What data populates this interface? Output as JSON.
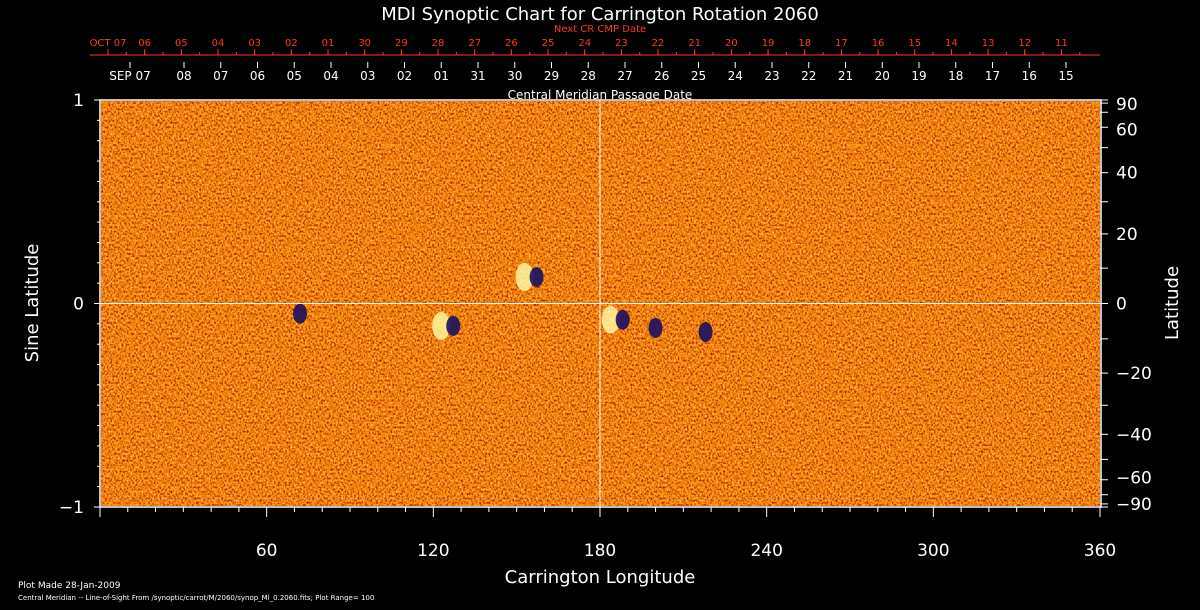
{
  "colors": {
    "background": "#000000",
    "text": "#ffffff",
    "next_cr_axis": "#ff3a1f",
    "map_base": "#ff5a10",
    "positive_flux": "#fff6a0",
    "negative_flux": "#1a1060"
  },
  "chart_data": {
    "type": "heatmap",
    "title": "MDI Synoptic Chart for Carrington Rotation 2060",
    "xlabel": "Carrington Longitude",
    "ylabel_left": "Sine Latitude",
    "ylabel_right": "Latitude",
    "xlim": [
      0,
      360
    ],
    "ylim": [
      -1,
      1
    ],
    "x_ticks": [
      60,
      120,
      180,
      240,
      300,
      360
    ],
    "y_ticks_left": [
      -1,
      0,
      1
    ],
    "y_ticks_right": [
      90,
      60,
      40,
      20,
      0,
      -20,
      -40,
      -60,
      -90
    ],
    "top_axis_label": "Central Meridian Passage Date",
    "top_axis_dates": [
      "SEP 07",
      "08",
      "07",
      "06",
      "05",
      "04",
      "03",
      "02",
      "01",
      "31",
      "30",
      "29",
      "28",
      "27",
      "26",
      "25",
      "24",
      "23",
      "22",
      "21",
      "20",
      "19",
      "18",
      "17",
      "16",
      "15"
    ],
    "next_cr_label": "Next CR CMP Date",
    "next_cr_dates": [
      "OCT 07",
      "06",
      "05",
      "04",
      "03",
      "02",
      "01",
      "30",
      "29",
      "28",
      "27",
      "26",
      "25",
      "24",
      "23",
      "22",
      "21",
      "20",
      "19",
      "18",
      "17",
      "16",
      "15",
      "14",
      "13",
      "12",
      "11"
    ],
    "crosshair": {
      "longitude": 180,
      "sine_latitude": 0
    },
    "plot_range": 100,
    "grid": false,
    "features": [
      {
        "longitude": 72,
        "sine_latitude": -0.05,
        "polarity": "negative"
      },
      {
        "longitude": 125,
        "sine_latitude": -0.11,
        "polarity": "mixed"
      },
      {
        "longitude": 155,
        "sine_latitude": 0.13,
        "polarity": "mixed"
      },
      {
        "longitude": 186,
        "sine_latitude": -0.08,
        "polarity": "mixed"
      },
      {
        "longitude": 200,
        "sine_latitude": -0.12,
        "polarity": "negative"
      },
      {
        "longitude": 218,
        "sine_latitude": -0.14,
        "polarity": "negative"
      }
    ]
  },
  "footer": {
    "plot_made": "Plot Made 28-Jan-2009",
    "source_note": "Central Meridian -- Line-of-Sight From /synoptic/carrot/M/2060/synop_Ml_0.2060.fits; Plot Range=  100"
  }
}
